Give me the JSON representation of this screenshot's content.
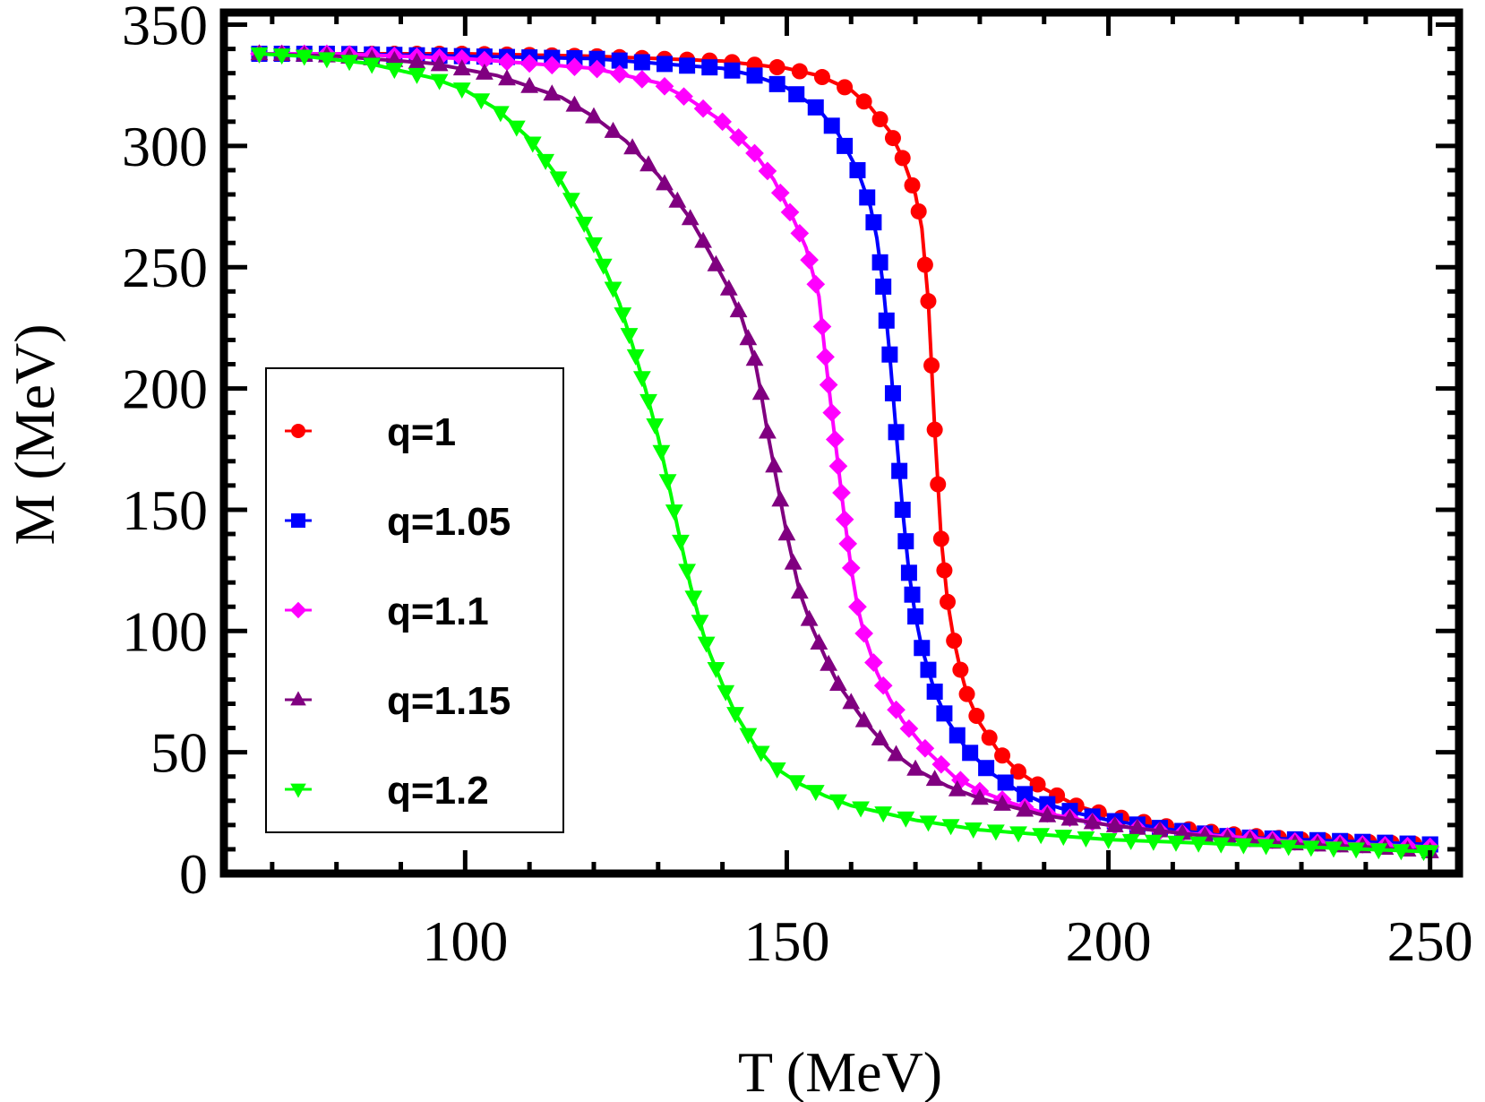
{
  "chart_data": {
    "type": "line",
    "title": "",
    "xlabel": "T (MeV)",
    "ylabel": "M (MeV)",
    "xlim": [
      62.5,
      254.5
    ],
    "ylim": [
      0,
      355
    ],
    "x_ticks": [
      100,
      150,
      200,
      250
    ],
    "x_tick_labels": [
      "100",
      "150",
      "200",
      "250"
    ],
    "x_minor_step": 10,
    "y_ticks": [
      0,
      50,
      100,
      150,
      200,
      250,
      300,
      350
    ],
    "y_tick_labels": [
      "0",
      "50",
      "100",
      "150",
      "200",
      "250",
      "300",
      "350"
    ],
    "y_minor_step": 10,
    "grid": false,
    "legend_position": "middle-left",
    "series": [
      {
        "name": "q=1",
        "color": "#ff0000",
        "marker": "circle",
        "x": [
          68,
          80,
          100,
          120,
          140,
          150,
          155,
          160,
          163,
          166,
          168,
          170,
          171,
          172,
          173,
          174,
          175,
          176,
          177,
          178,
          180,
          183,
          186,
          190,
          195,
          200,
          210,
          220,
          230,
          240,
          250
        ],
        "y": [
          338,
          338,
          338,
          337,
          335,
          332,
          329,
          323,
          316,
          306,
          295,
          280,
          266,
          236,
          183,
          138,
          112,
          96,
          84,
          74,
          62,
          50,
          42,
          35,
          28,
          24,
          19,
          16,
          14,
          13,
          12
        ]
      },
      {
        "name": "q=1.05",
        "color": "#0000ff",
        "marker": "square",
        "x": [
          68,
          80,
          100,
          120,
          140,
          145,
          150,
          155,
          158,
          161,
          163,
          164,
          165,
          166,
          167,
          168,
          169,
          170,
          171,
          173,
          175,
          178,
          182,
          186,
          190,
          195,
          200,
          210,
          220,
          230,
          240,
          250
        ],
        "y": [
          338,
          338,
          337,
          336,
          332,
          329,
          324,
          315,
          305,
          290,
          275,
          262,
          242,
          214,
          182,
          150,
          124,
          106,
          93,
          75,
          63,
          51,
          41,
          34,
          29,
          25,
          22,
          18,
          15,
          14,
          13,
          12
        ]
      },
      {
        "name": "q=1.1",
        "color": "#ff00ff",
        "marker": "diamond",
        "x": [
          68,
          80,
          100,
          120,
          130,
          135,
          140,
          145,
          148,
          151,
          153,
          155,
          156,
          157,
          158,
          159,
          160,
          161,
          162,
          164,
          166,
          168,
          172,
          176,
          180,
          185,
          190,
          200,
          210,
          220,
          230,
          240,
          250
        ],
        "y": [
          338,
          338,
          336,
          332,
          326,
          319,
          310,
          297,
          286,
          270,
          258,
          238,
          213,
          190,
          168,
          146,
          126,
          110,
          99,
          83,
          72,
          63,
          50,
          40,
          34,
          29,
          25,
          20,
          17,
          15,
          13,
          12,
          11
        ]
      },
      {
        "name": "q=1.15",
        "color": "#800080",
        "marker": "triangle-up",
        "x": [
          68,
          80,
          95,
          105,
          115,
          120,
          125,
          130,
          135,
          138,
          141,
          143,
          145,
          146,
          147,
          148,
          149,
          150,
          151,
          152,
          154,
          156,
          158,
          162,
          166,
          170,
          175,
          180,
          190,
          200,
          210,
          220,
          230,
          240,
          250
        ],
        "y": [
          338,
          337,
          334,
          329,
          320,
          312,
          302,
          288,
          270,
          256,
          241,
          229,
          212,
          198,
          182,
          168,
          154,
          140,
          128,
          116,
          101,
          89,
          78,
          63,
          51,
          43,
          36,
          31,
          24,
          20,
          17,
          14,
          12,
          11,
          9
        ]
      },
      {
        "name": "q=1.2",
        "color": "#00ff00",
        "marker": "triangle-down",
        "x": [
          68,
          75,
          85,
          95,
          100,
          105,
          110,
          115,
          118,
          121,
          124,
          126,
          128,
          130,
          131,
          132,
          133,
          134,
          135,
          136,
          137,
          138,
          140,
          142,
          145,
          148,
          152,
          156,
          160,
          170,
          180,
          190,
          200,
          210,
          220,
          230,
          240,
          250
        ],
        "y": [
          338,
          337,
          334,
          328,
          323,
          315,
          303,
          285,
          271,
          254,
          235,
          218,
          200,
          180,
          168,
          156,
          143,
          131,
          119,
          109,
          99,
          91,
          78,
          66,
          53,
          44,
          37,
          32,
          28,
          22,
          18,
          16,
          14,
          13,
          12,
          11,
          10,
          9
        ]
      }
    ]
  }
}
